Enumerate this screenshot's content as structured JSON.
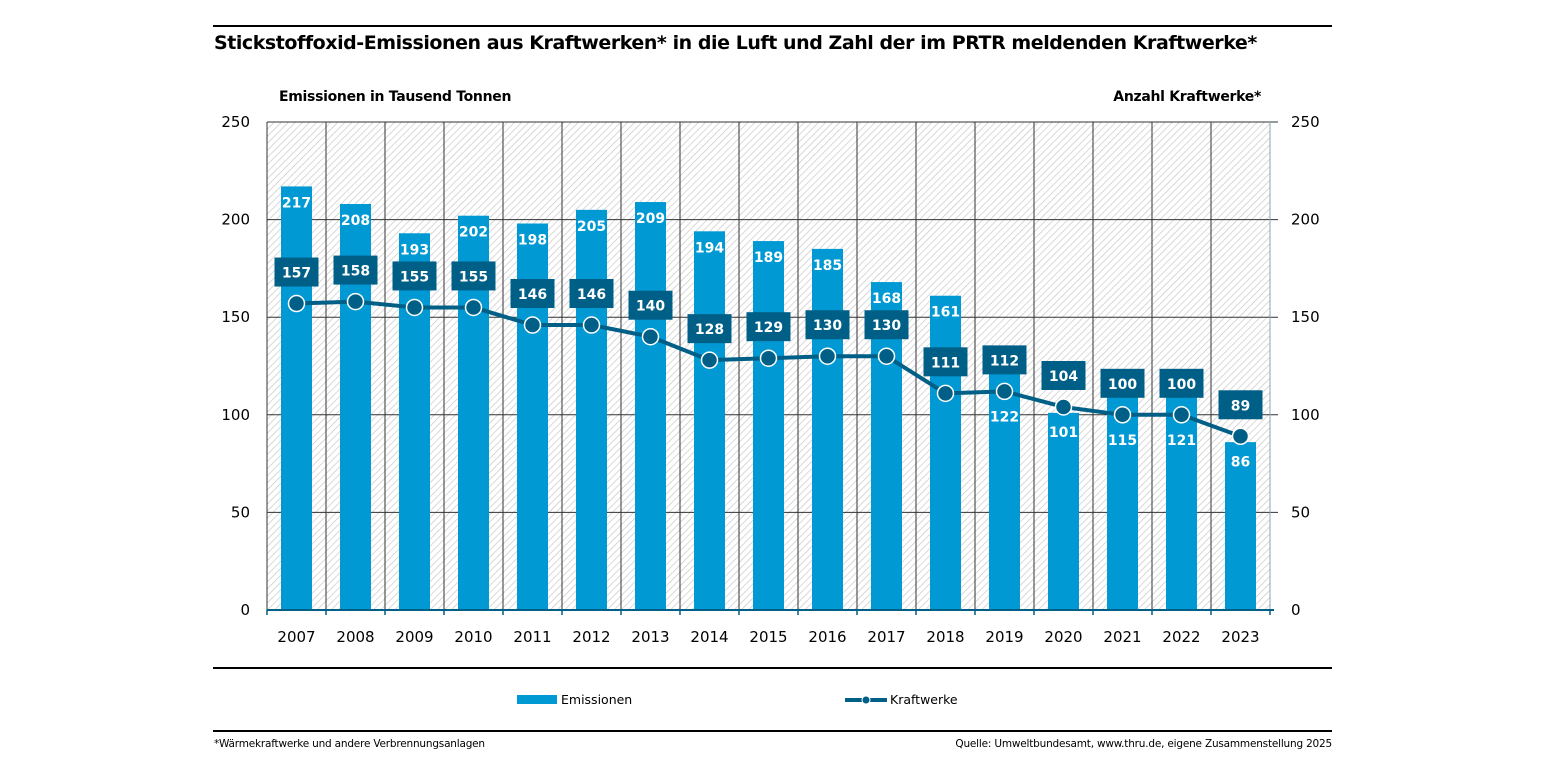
{
  "title": "Stickstoffoxid-Emissionen aus Kraftwerken* in die Luft und Zahl der im PRTR meldenden Kraftwerke*",
  "left_axis_title": "Emissionen in Tausend Tonnen",
  "right_axis_title": "Anzahl Kraftwerke*",
  "footnote": "*Wärmekraftwerke und andere Verbrennungsanlagen",
  "source": "Quelle: Umweltbundesamt, www.thru.de, eigene Zusammenstellung 2025",
  "colors": {
    "bar": "#0099d3",
    "line": "#005f86",
    "label_box": "#005f86",
    "grid": "#333333",
    "hatch": "#c8c8c8"
  },
  "chart_data": {
    "type": "bar+line",
    "title": "Stickstoffoxid-Emissionen aus Kraftwerken* in die Luft und Zahl der im PRTR meldenden Kraftwerke*",
    "xlabel": "",
    "ylabel": "Emissionen in Tausend Tonnen",
    "y2label": "Anzahl Kraftwerke*",
    "ylim": [
      0,
      250
    ],
    "y2lim": [
      0,
      250
    ],
    "yticks": [
      0,
      50,
      100,
      150,
      200,
      250
    ],
    "grid": true,
    "legend_position": "bottom",
    "categories": [
      "2007",
      "2008",
      "2009",
      "2010",
      "2011",
      "2012",
      "2013",
      "2014",
      "2015",
      "2016",
      "2017",
      "2018",
      "2019",
      "2020",
      "2021",
      "2022",
      "2023"
    ],
    "series": [
      {
        "name": "Emissionen",
        "type": "bar",
        "axis": "left",
        "values": [
          217,
          208,
          193,
          202,
          198,
          205,
          209,
          194,
          189,
          185,
          168,
          161,
          122,
          101,
          115,
          121,
          86
        ]
      },
      {
        "name": "Kraftwerke",
        "type": "line",
        "axis": "right",
        "values": [
          157,
          158,
          155,
          155,
          146,
          146,
          140,
          128,
          129,
          130,
          130,
          111,
          112,
          104,
          100,
          100,
          89
        ]
      }
    ]
  }
}
